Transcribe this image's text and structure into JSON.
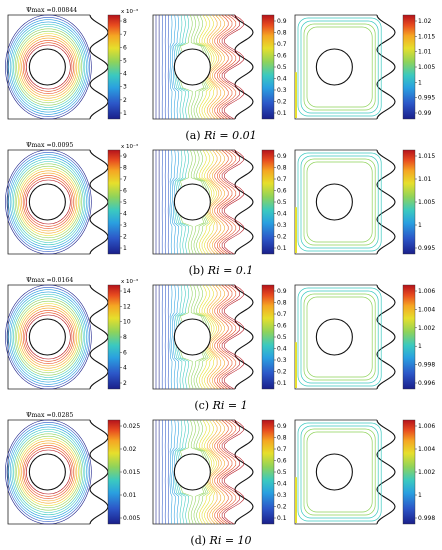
{
  "figure": {
    "colormap": [
      "#1a1f8a",
      "#2c57c8",
      "#2aa0e0",
      "#3bc9c0",
      "#8fd35a",
      "#e6df2c",
      "#f5a623",
      "#e84d1f",
      "#b5121b"
    ],
    "rows": [
      {
        "caption_prefix": "(a)",
        "caption_ri": "Ri = 0.01",
        "psi_label": "Ψmax",
        "psi_value": "=0.00844",
        "panels": [
          {
            "kind": "stream",
            "ticks": [
              "8",
              "7",
              "6",
              "5",
              "4",
              "3",
              "2",
              "1"
            ],
            "exponent": "x 10⁻³"
          },
          {
            "kind": "temperature",
            "ticks": [
              "0.9",
              "0.8",
              "0.7",
              "0.6",
              "0.5",
              "0.4",
              "0.3",
              "0.2",
              "0.1"
            ],
            "exponent": ""
          },
          {
            "kind": "density",
            "ticks": [
              "1.02",
              "1.015",
              "1.01",
              "1.005",
              "1",
              "0.995",
              "0.99"
            ],
            "exponent": ""
          }
        ]
      },
      {
        "caption_prefix": "(b)",
        "caption_ri": "Ri = 0.1",
        "psi_label": "Ψmax",
        "psi_value": "=0.0095",
        "panels": [
          {
            "kind": "stream",
            "ticks": [
              "9",
              "8",
              "7",
              "6",
              "5",
              "4",
              "3",
              "2",
              "1"
            ],
            "exponent": "x 10⁻³"
          },
          {
            "kind": "temperature",
            "ticks": [
              "0.9",
              "0.8",
              "0.7",
              "0.6",
              "0.5",
              "0.4",
              "0.3",
              "0.2",
              "0.1"
            ],
            "exponent": ""
          },
          {
            "kind": "density",
            "ticks": [
              "1.015",
              "1.01",
              "1.005",
              "1",
              "0.995"
            ],
            "exponent": ""
          }
        ]
      },
      {
        "caption_prefix": "(c)",
        "caption_ri": "Ri = 1",
        "psi_label": "Ψmax",
        "psi_value": "=0.0164",
        "panels": [
          {
            "kind": "stream",
            "ticks": [
              "14",
              "12",
              "10",
              "8",
              "6",
              "4",
              "2"
            ],
            "exponent": "x 10⁻³"
          },
          {
            "kind": "temperature",
            "ticks": [
              "0.9",
              "0.8",
              "0.7",
              "0.6",
              "0.5",
              "0.4",
              "0.3",
              "0.2",
              "0.1"
            ],
            "exponent": ""
          },
          {
            "kind": "density",
            "ticks": [
              "1.006",
              "1.004",
              "1.002",
              "1",
              "0.998",
              "0.996"
            ],
            "exponent": ""
          }
        ]
      },
      {
        "caption_prefix": "(d)",
        "caption_ri": "Ri = 10",
        "psi_label": "Ψmax",
        "psi_value": "=0.0285",
        "panels": [
          {
            "kind": "stream",
            "ticks": [
              "0.025",
              "0.02",
              "0.015",
              "0.01",
              "0.005"
            ],
            "exponent": ""
          },
          {
            "kind": "temperature",
            "ticks": [
              "0.9",
              "0.8",
              "0.7",
              "0.6",
              "0.5",
              "0.4",
              "0.3",
              "0.2",
              "0.1"
            ],
            "exponent": ""
          },
          {
            "kind": "density",
            "ticks": [
              "1.006",
              "1.004",
              "1.002",
              "1",
              "0.998"
            ],
            "exponent": ""
          }
        ]
      }
    ]
  }
}
